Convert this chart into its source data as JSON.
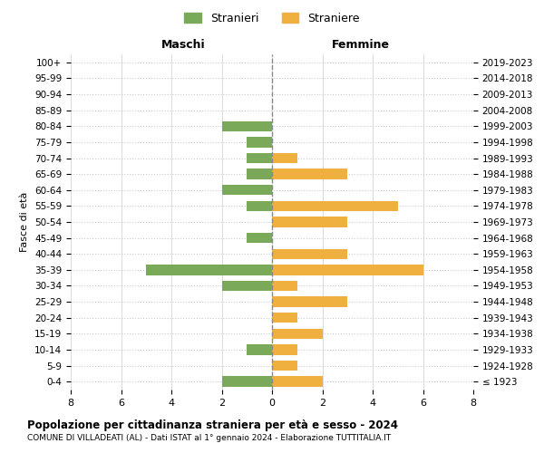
{
  "age_groups": [
    "100+",
    "95-99",
    "90-94",
    "85-89",
    "80-84",
    "75-79",
    "70-74",
    "65-69",
    "60-64",
    "55-59",
    "50-54",
    "45-49",
    "40-44",
    "35-39",
    "30-34",
    "25-29",
    "20-24",
    "15-19",
    "10-14",
    "5-9",
    "0-4"
  ],
  "birth_years": [
    "≤ 1923",
    "1924-1928",
    "1929-1933",
    "1934-1938",
    "1939-1943",
    "1944-1948",
    "1949-1953",
    "1954-1958",
    "1959-1963",
    "1964-1968",
    "1969-1973",
    "1974-1978",
    "1979-1983",
    "1984-1988",
    "1989-1993",
    "1994-1998",
    "1999-2003",
    "2004-2008",
    "2009-2013",
    "2014-2018",
    "2019-2023"
  ],
  "maschi": [
    0,
    0,
    0,
    0,
    2,
    1,
    1,
    1,
    2,
    1,
    0,
    1,
    0,
    5,
    2,
    0,
    0,
    0,
    1,
    0,
    2
  ],
  "femmine": [
    0,
    0,
    0,
    0,
    0,
    0,
    1,
    3,
    0,
    5,
    3,
    0,
    3,
    6,
    1,
    3,
    1,
    2,
    1,
    1,
    2
  ],
  "maschi_color": "#7aaa59",
  "femmine_color": "#f0b040",
  "title": "Popolazione per cittadinanza straniera per età e sesso - 2024",
  "subtitle": "COMUNE DI VILLADEATI (AL) - Dati ISTAT al 1° gennaio 2024 - Elaborazione TUTTITALIA.IT",
  "legend_maschi": "Stranieri",
  "legend_femmine": "Straniere",
  "label_left": "Maschi",
  "label_right": "Femmine",
  "ylabel_left": "Fasce di età",
  "xlim": 8,
  "background_color": "#ffffff",
  "grid_color": "#cccccc"
}
